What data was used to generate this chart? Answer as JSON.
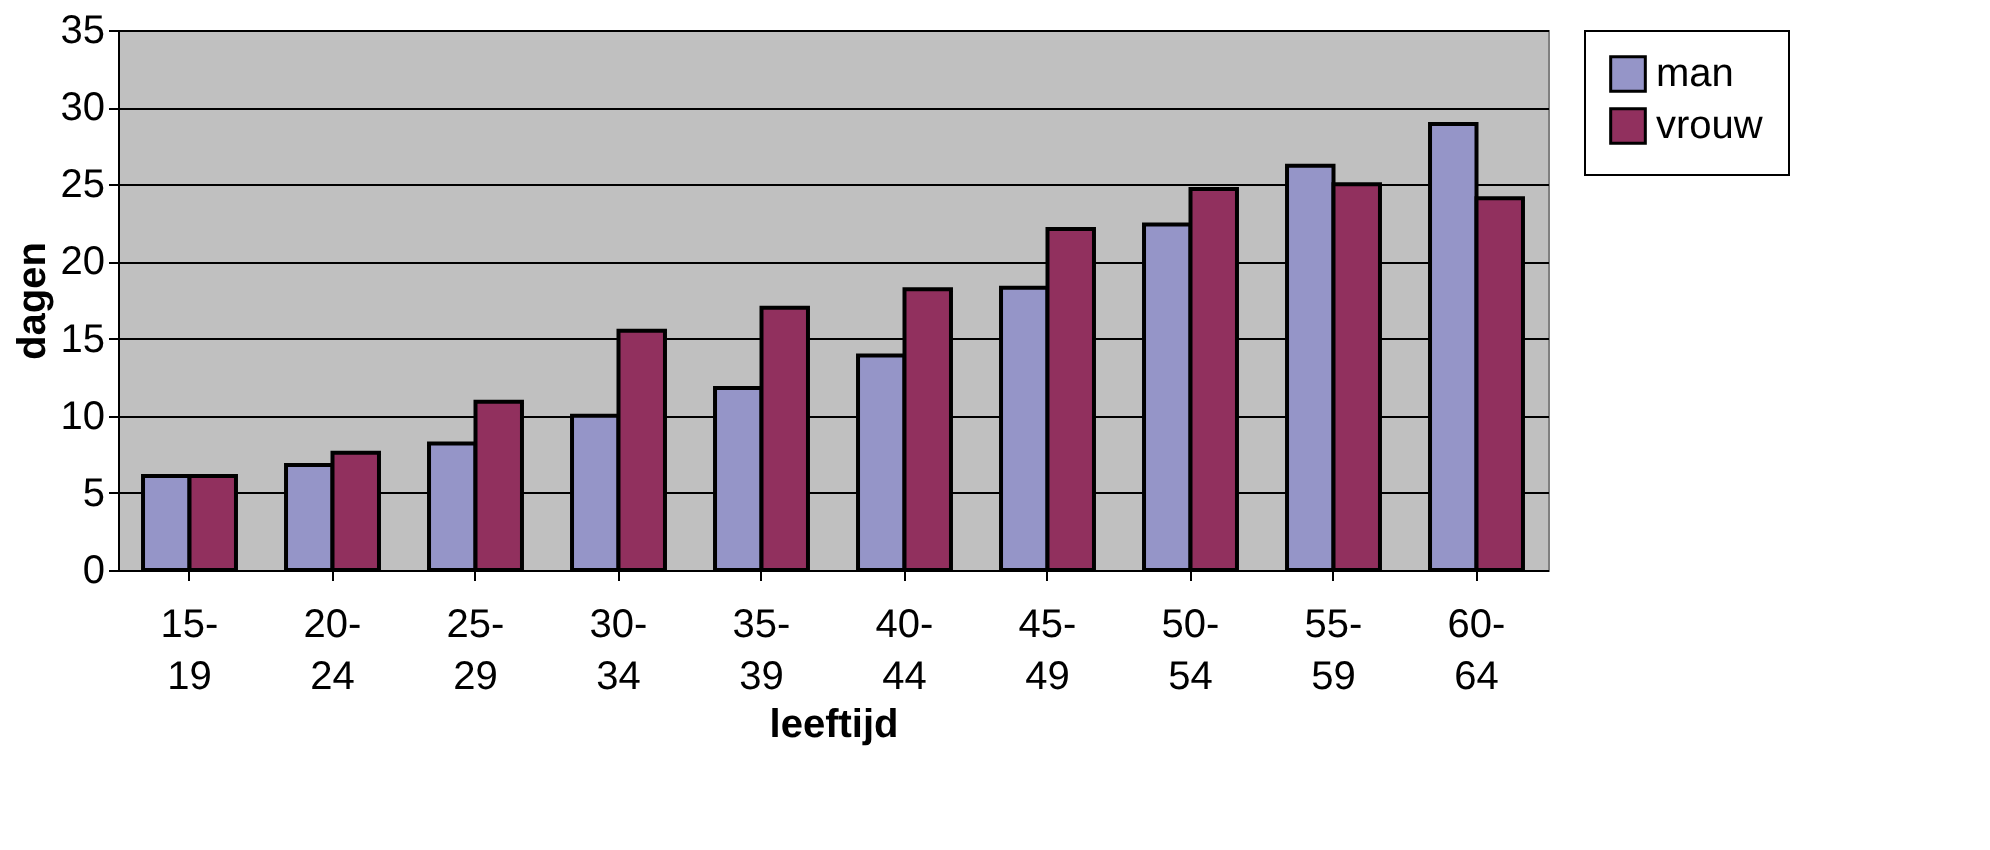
{
  "chart_data": {
    "type": "bar",
    "xlabel": "leeftijd",
    "ylabel": "dagen",
    "categories": [
      "15-19",
      "20-24",
      "25-29",
      "30-34",
      "35-39",
      "40-44",
      "45-49",
      "50-54",
      "55-59",
      "60-64"
    ],
    "series": [
      {
        "name": "man",
        "color": "#9595c8",
        "values": [
          6.1,
          6.8,
          8.2,
          10.0,
          11.8,
          13.9,
          18.3,
          22.4,
          26.2,
          28.9
        ]
      },
      {
        "name": "vrouw",
        "color": "#91305e",
        "values": [
          6.1,
          7.6,
          10.9,
          15.5,
          17.0,
          18.2,
          22.1,
          24.7,
          25.0,
          24.1
        ]
      }
    ],
    "ylim": [
      0,
      35
    ],
    "yticks": [
      0,
      5,
      10,
      15,
      20,
      25,
      30,
      35
    ],
    "grid": "y",
    "legend": "right"
  }
}
